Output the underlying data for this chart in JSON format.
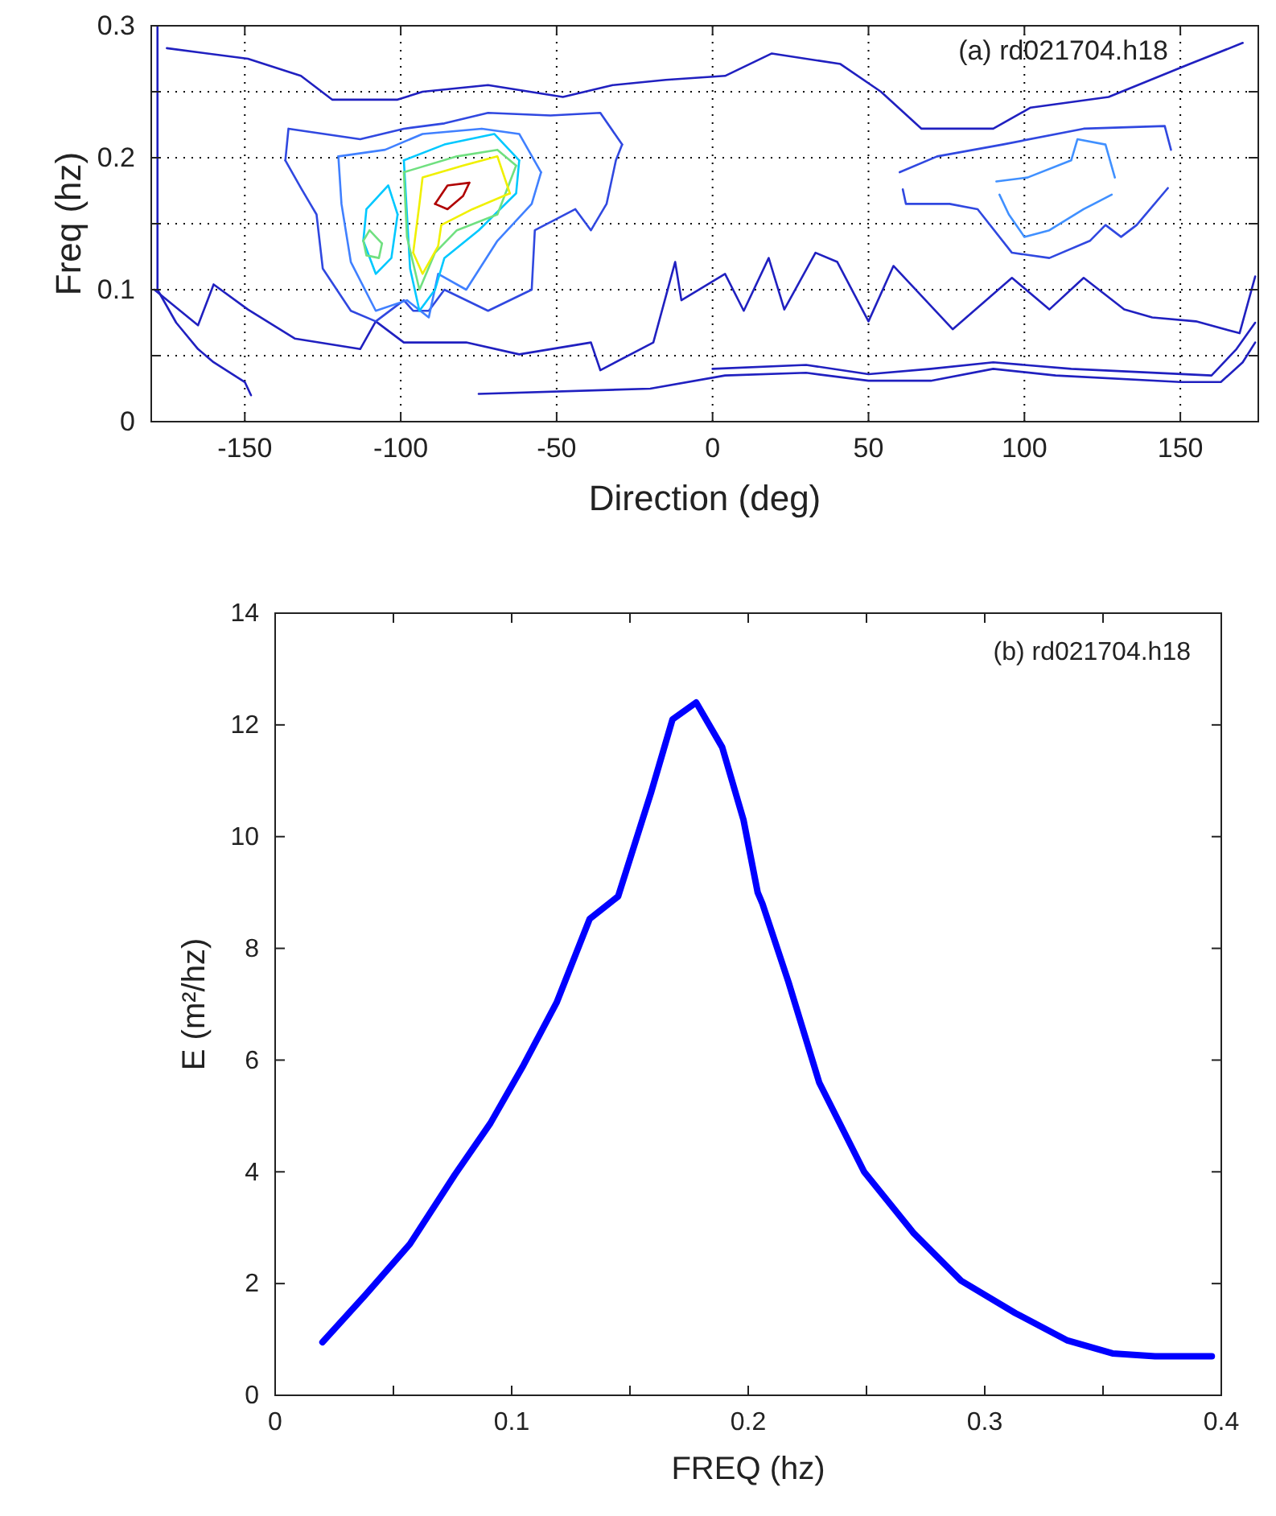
{
  "chart_data": [
    {
      "type": "line",
      "xlabel": "Direction (deg)",
      "ylabel": "Freq (hz)",
      "annotations": [
        "(a) rd021704.h18"
      ],
      "xlim": [
        -180,
        175
      ],
      "ylim": [
        0,
        0.3
      ],
      "xticks": [
        -150,
        -100,
        -50,
        0,
        50,
        100,
        150
      ],
      "yticks": [
        0,
        {
          "value": 0.05,
          "label": null
        },
        0.1,
        {
          "value": 0.15,
          "label": null
        },
        0.2,
        {
          "value": 0.25,
          "label": null
        },
        0.3
      ],
      "grid": true,
      "series": [
        {
          "color": "#2020c0",
          "x": [
            -179,
            -165,
            -160,
            -149,
            -134,
            -113,
            -108,
            -99,
            -79,
            -62,
            -39,
            -36,
            -19,
            -12,
            -10,
            4,
            10,
            18,
            23,
            33,
            40,
            50,
            58,
            77,
            96,
            108,
            119,
            132,
            141,
            155,
            169,
            174
          ],
          "values": [
            0.1,
            0.073,
            0.104,
            0.085,
            0.063,
            0.055,
            0.076,
            0.06,
            0.06,
            0.051,
            0.06,
            0.039,
            0.06,
            0.121,
            0.092,
            0.112,
            0.084,
            0.124,
            0.085,
            0.128,
            0.121,
            0.076,
            0.118,
            0.07,
            0.109,
            0.085,
            0.109,
            0.085,
            0.079,
            0.076,
            0.067,
            0.11
          ]
        },
        {
          "color": "#2020c0",
          "x": [
            -175,
            -149,
            -132,
            -122,
            -101,
            -93,
            -72,
            -48,
            -32,
            -15,
            4,
            19,
            41,
            54,
            67,
            90,
            102,
            127,
            153,
            170
          ],
          "values": [
            0.283,
            0.275,
            0.262,
            0.244,
            0.244,
            0.25,
            0.255,
            0.246,
            0.255,
            0.259,
            0.262,
            0.279,
            0.271,
            0.25,
            0.222,
            0.222,
            0.238,
            0.246,
            0.271,
            0.287
          ]
        },
        {
          "color": "#2020c0",
          "x": [
            -75,
            -20,
            4,
            30,
            50,
            70,
            90,
            110,
            150,
            163,
            170,
            174
          ],
          "values": [
            0.021,
            0.025,
            0.035,
            0.037,
            0.031,
            0.031,
            0.04,
            0.035,
            0.03,
            0.03,
            0.045,
            0.06
          ]
        },
        {
          "color": "#2020c0",
          "x": [
            0,
            30,
            50,
            70,
            90,
            115,
            160,
            168,
            174
          ],
          "values": [
            0.04,
            0.043,
            0.036,
            0.04,
            0.045,
            0.04,
            0.035,
            0.055,
            0.075
          ]
        },
        {
          "color": "#2020c0",
          "x": [
            -178,
            -178,
            -172,
            -165,
            -160,
            -150,
            -148
          ],
          "values": [
            0.3,
            0.1,
            0.075,
            0.055,
            0.045,
            0.03,
            0.02
          ]
        },
        {
          "color": "#3048e0",
          "x": [
            -137,
            -136,
            -113,
            -99,
            -86,
            -72,
            -52,
            -36,
            -29
          ],
          "values": [
            0.198,
            0.222,
            0.214,
            0.222,
            0.226,
            0.234,
            0.232,
            0.234,
            0.21
          ]
        },
        {
          "color": "#3048e0",
          "x": [
            -137,
            -132,
            -127,
            -125,
            -116,
            -108,
            -99,
            -96,
            -91,
            -86,
            -72,
            -58,
            -57,
            -44,
            -39,
            -34,
            -31,
            -29
          ],
          "values": [
            0.198,
            0.177,
            0.157,
            0.116,
            0.084,
            0.076,
            0.092,
            0.084,
            0.084,
            0.1,
            0.084,
            0.1,
            0.145,
            0.161,
            0.145,
            0.165,
            0.198,
            0.21
          ]
        },
        {
          "color": "#4080ff",
          "x": [
            -120,
            -105,
            -93,
            -74,
            -62,
            -55
          ],
          "values": [
            0.201,
            0.206,
            0.218,
            0.222,
            0.218,
            0.189
          ]
        },
        {
          "color": "#4080ff",
          "x": [
            -120,
            -119,
            -116,
            -108,
            -98,
            -91,
            -88,
            -79,
            -69,
            -58,
            -55
          ],
          "values": [
            0.201,
            0.165,
            0.121,
            0.084,
            0.092,
            0.079,
            0.112,
            0.1,
            0.137,
            0.165,
            0.189
          ]
        },
        {
          "color": "#00c8ff",
          "x": [
            -112,
            -111,
            -104,
            -101
          ],
          "values": [
            0.137,
            0.161,
            0.179,
            0.157
          ]
        },
        {
          "color": "#00c8ff",
          "x": [
            -112,
            -108,
            -103,
            -101
          ],
          "values": [
            0.137,
            0.112,
            0.124,
            0.157
          ]
        },
        {
          "color": "#00c8ff",
          "x": [
            -99,
            -86,
            -70,
            -62
          ],
          "values": [
            0.198,
            0.21,
            0.218,
            0.198
          ]
        },
        {
          "color": "#00c8ff",
          "x": [
            -99,
            -98,
            -97,
            -94,
            -89,
            -86,
            -75,
            -63,
            -62
          ],
          "values": [
            0.198,
            0.157,
            0.116,
            0.084,
            0.1,
            0.124,
            0.145,
            0.173,
            0.198
          ]
        },
        {
          "color": "#70e080",
          "x": [
            -112,
            -110,
            -106
          ],
          "values": [
            0.137,
            0.145,
            0.135
          ]
        },
        {
          "color": "#70e080",
          "x": [
            -112,
            -111,
            -107,
            -106
          ],
          "values": [
            0.137,
            0.126,
            0.124,
            0.135
          ]
        },
        {
          "color": "#70e080",
          "x": [
            -99,
            -82,
            -69,
            -63
          ],
          "values": [
            0.189,
            0.201,
            0.206,
            0.194
          ]
        },
        {
          "color": "#70e080",
          "x": [
            -99,
            -98,
            -94,
            -89,
            -82,
            -69,
            -63
          ],
          "values": [
            0.189,
            0.14,
            0.1,
            0.128,
            0.145,
            0.157,
            0.194
          ]
        },
        {
          "color": "#f0f000",
          "x": [
            -96,
            -94,
            -93,
            -80,
            -69,
            -65
          ],
          "values": [
            0.128,
            0.165,
            0.185,
            0.194,
            0.201,
            0.173
          ]
        },
        {
          "color": "#f0f000",
          "x": [
            -96,
            -93,
            -88,
            -87,
            -77,
            -65
          ],
          "values": [
            0.128,
            0.112,
            0.133,
            0.149,
            0.161,
            0.173
          ]
        },
        {
          "color": "#b00000",
          "x": [
            -89,
            -85,
            -78
          ],
          "values": [
            0.165,
            0.179,
            0.181
          ]
        },
        {
          "color": "#b00000",
          "x": [
            -89,
            -85,
            -80,
            -78
          ],
          "values": [
            0.165,
            0.161,
            0.171,
            0.181
          ]
        },
        {
          "color": "#3048e0",
          "x": [
            60,
            72,
            93,
            119,
            145,
            147
          ],
          "values": [
            0.189,
            0.201,
            0.21,
            0.222,
            0.224,
            0.206
          ]
        },
        {
          "color": "#3048e0",
          "x": [
            61,
            62,
            76,
            85,
            96,
            108,
            121,
            126,
            131,
            136,
            146
          ],
          "values": [
            0.176,
            0.165,
            0.165,
            0.161,
            0.128,
            0.124,
            0.137,
            0.149,
            0.14,
            0.149,
            0.177
          ]
        },
        {
          "color": "#4090ff",
          "x": [
            91,
            101,
            115,
            117,
            126,
            129
          ],
          "values": [
            0.182,
            0.185,
            0.198,
            0.214,
            0.21,
            0.185
          ]
        },
        {
          "color": "#4090ff",
          "x": [
            92,
            95,
            100,
            108,
            119,
            128
          ],
          "values": [
            0.172,
            0.157,
            0.14,
            0.145,
            0.161,
            0.172
          ]
        }
      ]
    },
    {
      "type": "line",
      "xlabel": "FREQ (hz)",
      "ylabel": "E (m²/hz)",
      "annotations": [
        "(b) rd021704.h18"
      ],
      "xlim": [
        0,
        0.4
      ],
      "ylim": [
        0,
        14
      ],
      "xticks": [
        0,
        {
          "value": 0.05,
          "label": null
        },
        0.1,
        {
          "value": 0.15,
          "label": null
        },
        0.2,
        {
          "value": 0.25,
          "label": null
        },
        0.3,
        {
          "value": 0.35,
          "label": null
        },
        0.4
      ],
      "yticks": [
        0,
        2,
        4,
        6,
        8,
        10,
        12,
        14
      ],
      "series": [
        {
          "color": "#0000ff",
          "x": [
            0.02,
            0.038,
            0.057,
            0.076,
            0.091,
            0.105,
            0.119,
            0.133,
            0.145,
            0.159,
            0.168,
            0.178,
            0.189,
            0.198,
            0.204,
            0.206,
            0.217,
            0.23,
            0.249,
            0.27,
            0.29,
            0.313,
            0.335,
            0.354,
            0.372,
            0.396
          ],
          "values": [
            0.95,
            1.79,
            2.71,
            3.95,
            4.87,
            5.91,
            7.03,
            8.53,
            8.93,
            10.8,
            12.1,
            12.4,
            11.6,
            10.3,
            9.0,
            8.8,
            7.4,
            5.6,
            4.0,
            2.9,
            2.05,
            1.47,
            0.98,
            0.75,
            0.7,
            0.7
          ]
        }
      ]
    }
  ]
}
